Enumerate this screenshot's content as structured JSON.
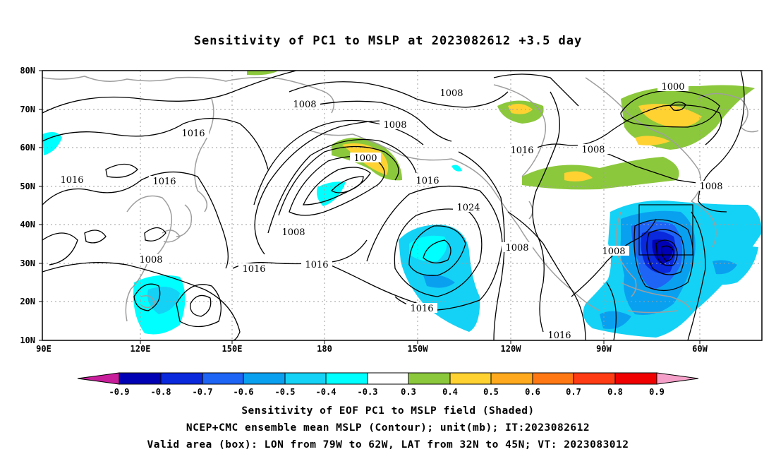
{
  "title": "Sensitivity of PC1 to MSLP at 2023082612 +3.5 day",
  "map": {
    "lat_labels": [
      "80N",
      "70N",
      "60N",
      "50N",
      "40N",
      "30N",
      "20N",
      "10N"
    ],
    "lon_labels": [
      "90E",
      "120E",
      "150E",
      "180",
      "150W",
      "120W",
      "90W",
      "60W"
    ],
    "contour_labels": [
      "1016",
      "1008",
      "1016",
      "1016",
      "1016",
      "1000",
      "1008",
      "1008",
      "1016",
      "1024",
      "1016",
      "1016",
      "1008",
      "1008",
      "1016",
      "1008",
      "1008",
      "1008",
      "1016",
      "1000",
      "1008"
    ],
    "valid_box": {
      "lon": [
        -79,
        -62
      ],
      "lat": [
        32,
        45
      ]
    }
  },
  "colorbar": {
    "labels": [
      "-0.9",
      "-0.8",
      "-0.7",
      "-0.6",
      "-0.5",
      "-0.4",
      "-0.3",
      "0.3",
      "0.4",
      "0.5",
      "0.6",
      "0.7",
      "0.8",
      "0.9"
    ],
    "colors": [
      "#0000b4",
      "#0a28dc",
      "#1e64f5",
      "#0aa0f0",
      "#14d2f5",
      "#00ffff",
      "#ffffff",
      "#8cc83c",
      "#ffd232",
      "#ffaa1e",
      "#ff7814",
      "#ff3c14",
      "#f00000"
    ],
    "left_tip_color": "#c81e9b",
    "right_tip_color": "#f5a0c8"
  },
  "caption": {
    "line1": "Sensitivity of EOF PC1 to MSLP field (Shaded)",
    "line2": "NCEP+CMC ensemble mean MSLP (Contour); unit(mb); IT:2023082612",
    "line3": "Valid area (box): LON from 79W to 62W, LAT from 32N to 45N; VT: 2023083012"
  }
}
